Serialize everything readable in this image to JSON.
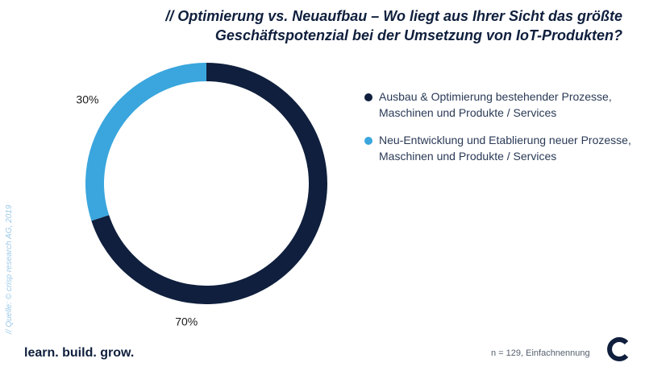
{
  "title_line1": "// Optimierung vs. Neuaufbau – Wo liegt aus Ihrer Sicht das größte",
  "title_line2": "Geschäftspotenzial bei der Umsetzung von IoT-Produkten?",
  "chart_data": {
    "type": "pie",
    "title": "// Optimierung vs. Neuaufbau – Wo liegt aus Ihrer Sicht das größte Geschäftspotenzial bei der Umsetzung von IoT-Produkten?",
    "categories": [
      "Ausbau & Optimierung bestehender Prozesse, Maschinen und Produkte / Services",
      "Neu-Entwicklung und Etablierung neuer Prozesse, Maschinen und Produkte / Services"
    ],
    "values": [
      70,
      30
    ],
    "labels": [
      "70%",
      "30%"
    ],
    "colors": [
      "#0f1f3d",
      "#3aa6dd"
    ],
    "donut": true,
    "legend_position": "right"
  },
  "legend": [
    {
      "line1": "Ausbau & Optimierung bestehender Prozesse,",
      "line2": "Maschinen und Produkte / Services",
      "color": "#0f1f3d"
    },
    {
      "line1": "Neu-Entwicklung und Etablierung neuer Prozesse,",
      "line2": "Maschinen und Produkte / Services",
      "color": "#3aa6dd"
    }
  ],
  "source": "// Quelle: © crisp research AG, 2019",
  "footer_slogan": "learn. build. grow.",
  "footer_note": "n = 129, Einfachnennung",
  "logo_name": "crisp-logo-icon"
}
